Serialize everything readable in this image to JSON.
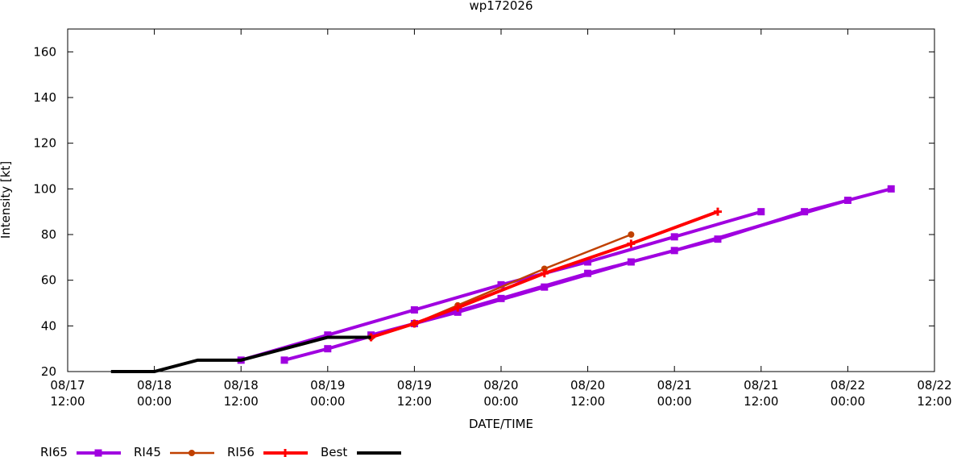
{
  "chart_data": {
    "type": "line",
    "title": "wp172026",
    "xlabel": "DATE/TIME",
    "ylabel": "Intensity [kt]",
    "xlim": [
      "08/17 12:00",
      "08/22 12:00"
    ],
    "xticks": [
      "08/17 12:00",
      "08/18 00:00",
      "08/18 12:00",
      "08/19 00:00",
      "08/19 12:00",
      "08/20 00:00",
      "08/20 12:00",
      "08/21 00:00",
      "08/21 12:00",
      "08/22 00:00",
      "08/22 12:00"
    ],
    "ylim": [
      20,
      170
    ],
    "yticks": [
      20,
      40,
      60,
      80,
      100,
      120,
      140,
      160
    ],
    "legend": "bottom",
    "series": [
      {
        "name": "RI65",
        "color": "#a000e0",
        "marker": "square",
        "tracks": [
          {
            "x": [
              "08/18 12:00",
              "08/19 00:00",
              "08/19 12:00",
              "08/20 00:00",
              "08/20 12:00",
              "08/21 00:00",
              "08/21 12:00"
            ],
            "values": [
              25,
              36,
              47,
              58,
              68,
              79,
              90
            ]
          },
          {
            "x": [
              "08/18 18:00",
              "08/19 00:00",
              "08/19 12:00",
              "08/20 00:00",
              "08/20 12:00",
              "08/21 00:00",
              "08/22 00:00"
            ],
            "values": [
              25,
              30,
              41,
              52,
              63,
              73,
              95
            ]
          },
          {
            "x": [
              "08/19 06:00",
              "08/19 18:00",
              "08/20 06:00",
              "08/20 18:00",
              "08/21 06:00",
              "08/21 18:00",
              "08/22 06:00"
            ],
            "values": [
              36,
              46,
              57,
              68,
              78,
              90,
              100
            ]
          }
        ]
      },
      {
        "name": "RI45",
        "color": "#c04000",
        "marker": "dot",
        "tracks": [
          {
            "x": [
              "08/19 06:00",
              "08/19 12:00",
              "08/19 18:00",
              "08/20 06:00",
              "08/20 18:00"
            ],
            "values": [
              35,
              41,
              49,
              65,
              80
            ]
          }
        ]
      },
      {
        "name": "RI56",
        "color": "#ff0000",
        "marker": "plus",
        "tracks": [
          {
            "x": [
              "08/19 06:00",
              "08/19 12:00",
              "08/19 18:00",
              "08/20 06:00",
              "08/20 18:00",
              "08/21 06:00"
            ],
            "values": [
              35,
              41,
              48,
              63,
              76,
              90
            ]
          }
        ]
      },
      {
        "name": "Best",
        "color": "#000000",
        "marker": "none",
        "tracks": [
          {
            "x": [
              "08/17 18:00",
              "08/18 00:00",
              "08/18 06:00",
              "08/18 12:00",
              "08/18 18:00",
              "08/19 00:00",
              "08/19 06:00"
            ],
            "values": [
              20,
              20,
              25,
              25,
              30,
              35,
              35
            ]
          }
        ]
      }
    ]
  }
}
